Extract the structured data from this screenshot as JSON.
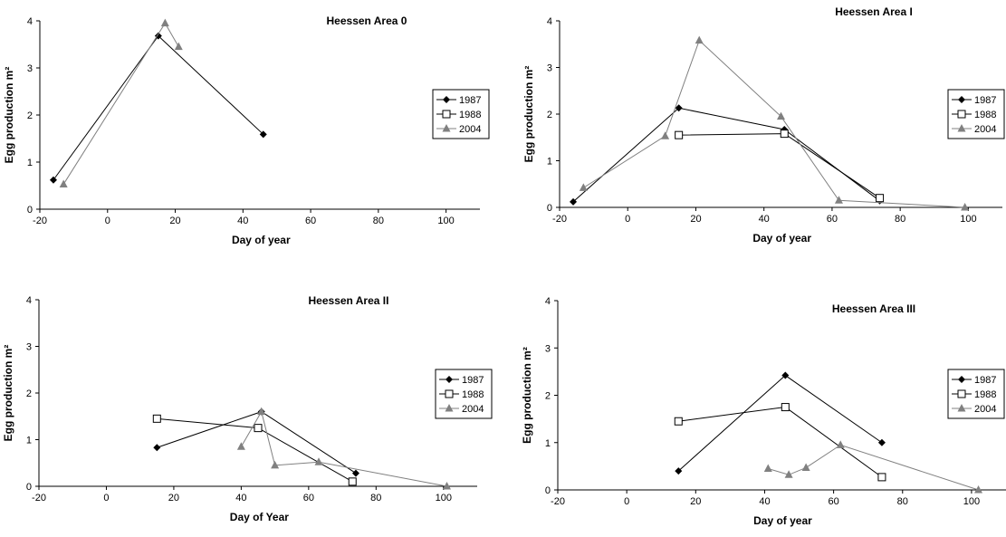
{
  "chart_data": [
    {
      "type": "line",
      "title": "Heessen Area 0",
      "xlabel": "Day of year",
      "ylabel": "Egg production m²",
      "xlim": [
        -20,
        110
      ],
      "ylim": [
        0,
        4
      ],
      "xticks": [
        "-20",
        "0",
        "20",
        "40",
        "60",
        "80",
        "100"
      ],
      "yticks": [
        "0",
        "1",
        "2",
        "3",
        "4"
      ],
      "legend": "right",
      "series": [
        {
          "name": "1987",
          "color": "#000000",
          "marker": "diamond",
          "x": [
            -16,
            15,
            46
          ],
          "y": [
            0.62,
            3.68,
            1.59
          ]
        },
        {
          "name": "1988",
          "color": "#000000",
          "marker": "square-open",
          "x": [],
          "y": []
        },
        {
          "name": "2004",
          "color": "#808080",
          "marker": "triangle",
          "x": [
            -13,
            17,
            21
          ],
          "y": [
            0.53,
            3.95,
            3.45
          ]
        }
      ]
    },
    {
      "type": "line",
      "title": "Heessen Area I",
      "xlabel": "Day of year",
      "ylabel": "Egg production m²",
      "xlim": [
        -20,
        110
      ],
      "ylim": [
        0,
        4
      ],
      "xticks": [
        "-20",
        "0",
        "20",
        "40",
        "60",
        "80",
        "100"
      ],
      "yticks": [
        "0",
        "1",
        "2",
        "3",
        "4"
      ],
      "legend": "right",
      "series": [
        {
          "name": "1987",
          "color": "#000000",
          "marker": "diamond",
          "x": [
            -16,
            15,
            46,
            74
          ],
          "y": [
            0.12,
            2.13,
            1.67,
            0.14
          ]
        },
        {
          "name": "1988",
          "color": "#000000",
          "marker": "square-open",
          "x": [
            15,
            46,
            74
          ],
          "y": [
            1.55,
            1.58,
            0.2
          ]
        },
        {
          "name": "2004",
          "color": "#808080",
          "marker": "triangle",
          "x": [
            -13,
            11,
            21,
            45,
            62,
            99
          ],
          "y": [
            0.42,
            1.53,
            3.58,
            1.95,
            0.15,
            0.0
          ]
        }
      ]
    },
    {
      "type": "line",
      "title": "Heessen Area II",
      "xlabel": "Day of Year",
      "ylabel": "Egg production m²",
      "xlim": [
        -20,
        110
      ],
      "ylim": [
        0,
        4
      ],
      "xticks": [
        "-20",
        "0",
        "20",
        "40",
        "60",
        "80",
        "100"
      ],
      "yticks": [
        "0",
        "1",
        "2",
        "3",
        "4"
      ],
      "legend": "right",
      "series": [
        {
          "name": "1987",
          "color": "#000000",
          "marker": "diamond",
          "x": [
            15,
            46,
            74
          ],
          "y": [
            0.83,
            1.6,
            0.28
          ]
        },
        {
          "name": "1988",
          "color": "#000000",
          "marker": "square-open",
          "x": [
            15,
            45,
            73
          ],
          "y": [
            1.45,
            1.25,
            0.1
          ]
        },
        {
          "name": "2004",
          "color": "#808080",
          "marker": "triangle",
          "x": [
            40,
            46,
            50,
            63,
            101
          ],
          "y": [
            0.85,
            1.6,
            0.45,
            0.52,
            0.0
          ]
        }
      ]
    },
    {
      "type": "line",
      "title": "Heessen Area III",
      "xlabel": "Day of year",
      "ylabel": "Egg production m²",
      "xlim": [
        -20,
        110
      ],
      "ylim": [
        0,
        4
      ],
      "xticks": [
        "-20",
        "0",
        "20",
        "40",
        "60",
        "80",
        "100"
      ],
      "yticks": [
        "0",
        "1",
        "2",
        "3",
        "4"
      ],
      "legend": "right",
      "series": [
        {
          "name": "1987",
          "color": "#000000",
          "marker": "diamond",
          "x": [
            15,
            46,
            74
          ],
          "y": [
            0.4,
            2.42,
            1.0
          ]
        },
        {
          "name": "1988",
          "color": "#000000",
          "marker": "square-open",
          "x": [
            15,
            46,
            74
          ],
          "y": [
            1.45,
            1.75,
            0.27
          ]
        },
        {
          "name": "2004",
          "color": "#808080",
          "marker": "triangle",
          "x": [
            41,
            47,
            52,
            62,
            102
          ],
          "y": [
            0.45,
            0.32,
            0.47,
            0.95,
            0.0
          ]
        }
      ]
    }
  ]
}
